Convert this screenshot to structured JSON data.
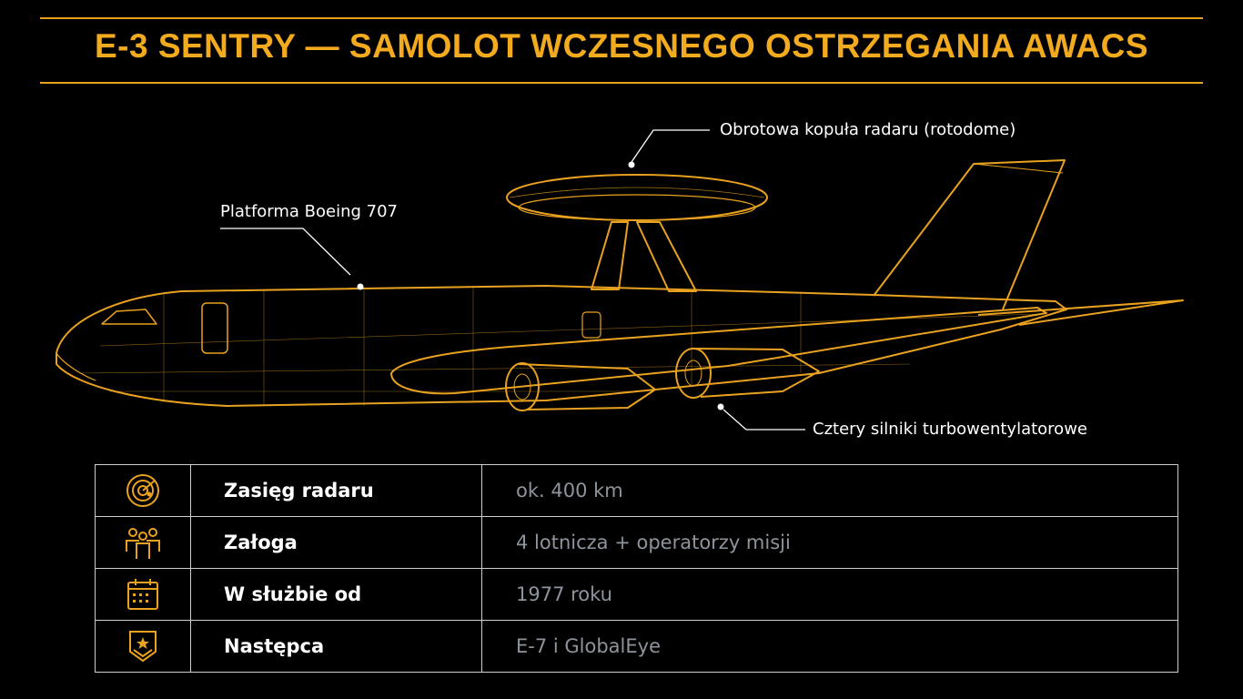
{
  "header": {
    "title": "E-3 SENTRY  — SAMOLOT WCZESNEGO OSTRZEGANIA AWACS"
  },
  "callouts": [
    "Obrotowa kopuła radaru (rotodome)",
    "Platforma Boeing 707",
    "Cztery silniki turbowentylatorowe"
  ],
  "table": {
    "rows": [
      [
        "Zasięg radaru",
        "ok. 400 km"
      ],
      [
        "Załoga",
        "4 lotnicza + operatorzy misji"
      ],
      [
        "W służbie od",
        "1977 roku"
      ],
      [
        "Następca",
        "E-7 i GlobalEye"
      ]
    ]
  }
}
